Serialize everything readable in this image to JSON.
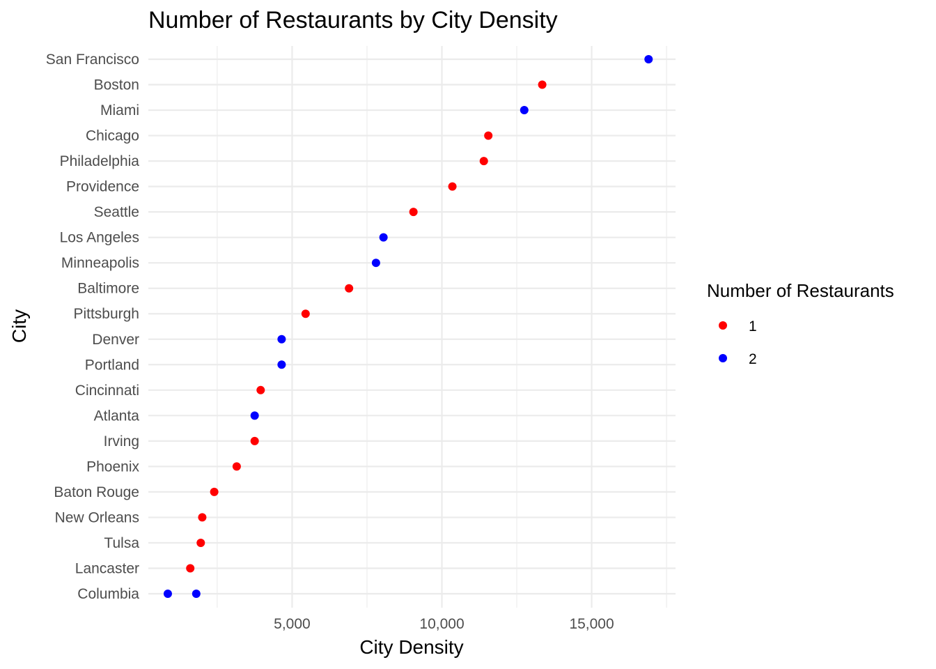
{
  "chart_data": {
    "type": "scatter",
    "title": "Number of Restaurants by City Density",
    "xlabel": "City Density",
    "ylabel": "City",
    "xlim": [
      200,
      17800
    ],
    "x_ticks": [
      5000,
      10000,
      15000
    ],
    "x_tick_labels": [
      "5,000",
      "10,000",
      "15,000"
    ],
    "categories": [
      "San Francisco",
      "Boston",
      "Miami",
      "Chicago",
      "Philadelphia",
      "Providence",
      "Seattle",
      "Los Angeles",
      "Minneapolis",
      "Baltimore",
      "Pittsburgh",
      "Denver",
      "Portland",
      "Cincinnati",
      "Atlanta",
      "Irving",
      "Phoenix",
      "Baton Rouge",
      "New Orleans",
      "Tulsa",
      "Lancaster",
      "Columbia"
    ],
    "legend": {
      "title": "Number of Restaurants",
      "placement": "right",
      "entries": [
        {
          "label": "1",
          "color": "#ff0000"
        },
        {
          "label": "2",
          "color": "#0000ff"
        }
      ]
    },
    "grid": true,
    "points": [
      {
        "city": "San Francisco",
        "x": 16900,
        "group": "2"
      },
      {
        "city": "Boston",
        "x": 13350,
        "group": "1"
      },
      {
        "city": "Miami",
        "x": 12750,
        "group": "2"
      },
      {
        "city": "Chicago",
        "x": 11550,
        "group": "1"
      },
      {
        "city": "Philadelphia",
        "x": 11400,
        "group": "1"
      },
      {
        "city": "Providence",
        "x": 10350,
        "group": "1"
      },
      {
        "city": "Seattle",
        "x": 9050,
        "group": "1"
      },
      {
        "city": "Los Angeles",
        "x": 8050,
        "group": "2"
      },
      {
        "city": "Minneapolis",
        "x": 7800,
        "group": "2"
      },
      {
        "city": "Baltimore",
        "x": 6900,
        "group": "1"
      },
      {
        "city": "Pittsburgh",
        "x": 5450,
        "group": "1"
      },
      {
        "city": "Denver",
        "x": 4650,
        "group": "2"
      },
      {
        "city": "Portland",
        "x": 4650,
        "group": "2"
      },
      {
        "city": "Cincinnati",
        "x": 3950,
        "group": "1"
      },
      {
        "city": "Atlanta",
        "x": 3750,
        "group": "2"
      },
      {
        "city": "Irving",
        "x": 3750,
        "group": "1"
      },
      {
        "city": "Phoenix",
        "x": 3150,
        "group": "1"
      },
      {
        "city": "Baton Rouge",
        "x": 2400,
        "group": "1"
      },
      {
        "city": "New Orleans",
        "x": 2000,
        "group": "1"
      },
      {
        "city": "Tulsa",
        "x": 1950,
        "group": "1"
      },
      {
        "city": "Lancaster",
        "x": 1600,
        "group": "1"
      },
      {
        "city": "Columbia",
        "x": 850,
        "group": "2"
      },
      {
        "city": "Columbia",
        "x": 1800,
        "group": "2"
      }
    ]
  }
}
